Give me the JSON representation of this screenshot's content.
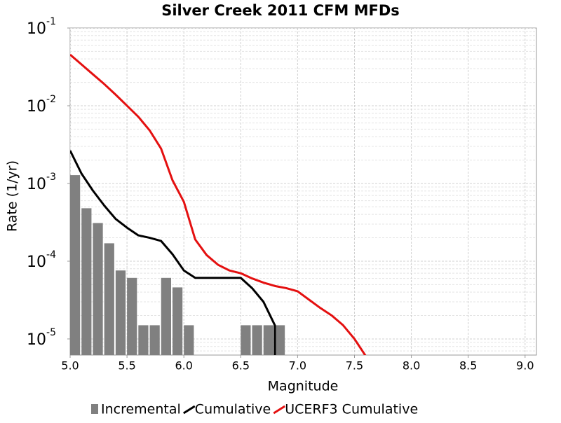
{
  "chart_data": {
    "type": "combo",
    "title": "Silver Creek 2011 CFM MFDs",
    "x_label": "Magnitude",
    "y_label": "Rate (1/yr)",
    "xlim": [
      5.0,
      9.1
    ],
    "ylim": [
      6.2e-06,
      0.1
    ],
    "y_log": true,
    "grid": true,
    "xticks": [
      {
        "value": 5.0,
        "label": "5.0"
      },
      5.5,
      {
        "value": 6.0,
        "label": "6.0"
      },
      6.5,
      {
        "value": 7.0,
        "label": "7.0"
      },
      7.5,
      {
        "value": 8.0,
        "label": "8.0"
      },
      8.5,
      {
        "value": 9.0,
        "label": "9.0"
      }
    ],
    "yticks": [
      {
        "value": 0.1,
        "label": "10",
        "exponent": "-1"
      },
      {
        "value": 0.01,
        "label": "10",
        "exponent": "-2"
      },
      {
        "value": 0.001,
        "label": "10",
        "exponent": "-3"
      },
      {
        "value": 0.0001,
        "label": "10",
        "exponent": "-4"
      },
      {
        "value": 1e-05,
        "label": "10",
        "exponent": "-5"
      }
    ],
    "legend": "bottom",
    "series": [
      {
        "name": "Incremental",
        "type": "histogram",
        "color": "#808080",
        "bins": [
          5.0,
          5.1,
          5.2,
          5.3,
          5.4,
          5.5,
          5.6,
          5.7,
          5.8,
          5.9,
          6.0,
          6.1,
          6.2,
          6.3,
          6.4,
          6.5,
          6.6,
          6.7,
          6.8,
          6.9
        ],
        "values": [
          0.00128,
          0.00048,
          0.00031,
          0.00017,
          7.6e-05,
          6.1e-05,
          1.5e-05,
          1.5e-05,
          6.1e-05,
          4.6e-05,
          1.5e-05,
          null,
          null,
          null,
          null,
          1.5e-05,
          1.5e-05,
          1.5e-05,
          1.5e-05
        ]
      },
      {
        "name": "Cumulative",
        "type": "line",
        "color": "#000000",
        "x": [
          5.0,
          5.1,
          5.2,
          5.3,
          5.4,
          5.5,
          5.6,
          5.7,
          5.8,
          5.9,
          6.0,
          6.1,
          6.2,
          6.3,
          6.4,
          6.5,
          6.6,
          6.7,
          6.8,
          6.8
        ],
        "values": [
          0.00265,
          0.00134,
          0.00081,
          0.00052,
          0.00035,
          0.00027,
          0.000215,
          0.0002,
          0.000182,
          0.000123,
          7.6e-05,
          6.1e-05,
          6.1e-05,
          6.1e-05,
          6.1e-05,
          6.1e-05,
          4.5e-05,
          3e-05,
          1.5e-05,
          1e-06
        ]
      },
      {
        "name": "UCERF3 Cumulative",
        "type": "line",
        "color": "#e41010",
        "x": [
          5.0,
          5.1,
          5.2,
          5.3,
          5.4,
          5.5,
          5.6,
          5.7,
          5.8,
          5.9,
          6.0,
          6.1,
          6.2,
          6.3,
          6.4,
          6.5,
          6.6,
          6.7,
          6.8,
          6.9,
          7.0,
          7.1,
          7.2,
          7.3,
          7.4,
          7.5,
          7.6
        ],
        "values": [
          0.0455,
          0.034,
          0.0254,
          0.019,
          0.0139,
          0.01,
          0.0072,
          0.0048,
          0.0028,
          0.0011,
          0.00058,
          0.00019,
          0.00012,
          9e-05,
          7.6e-05,
          7e-05,
          6e-05,
          5.3e-05,
          4.8e-05,
          4.5e-05,
          4.1e-05,
          3.2e-05,
          2.5e-05,
          2e-05,
          1.5e-05,
          1e-05,
          6e-06
        ]
      }
    ]
  }
}
